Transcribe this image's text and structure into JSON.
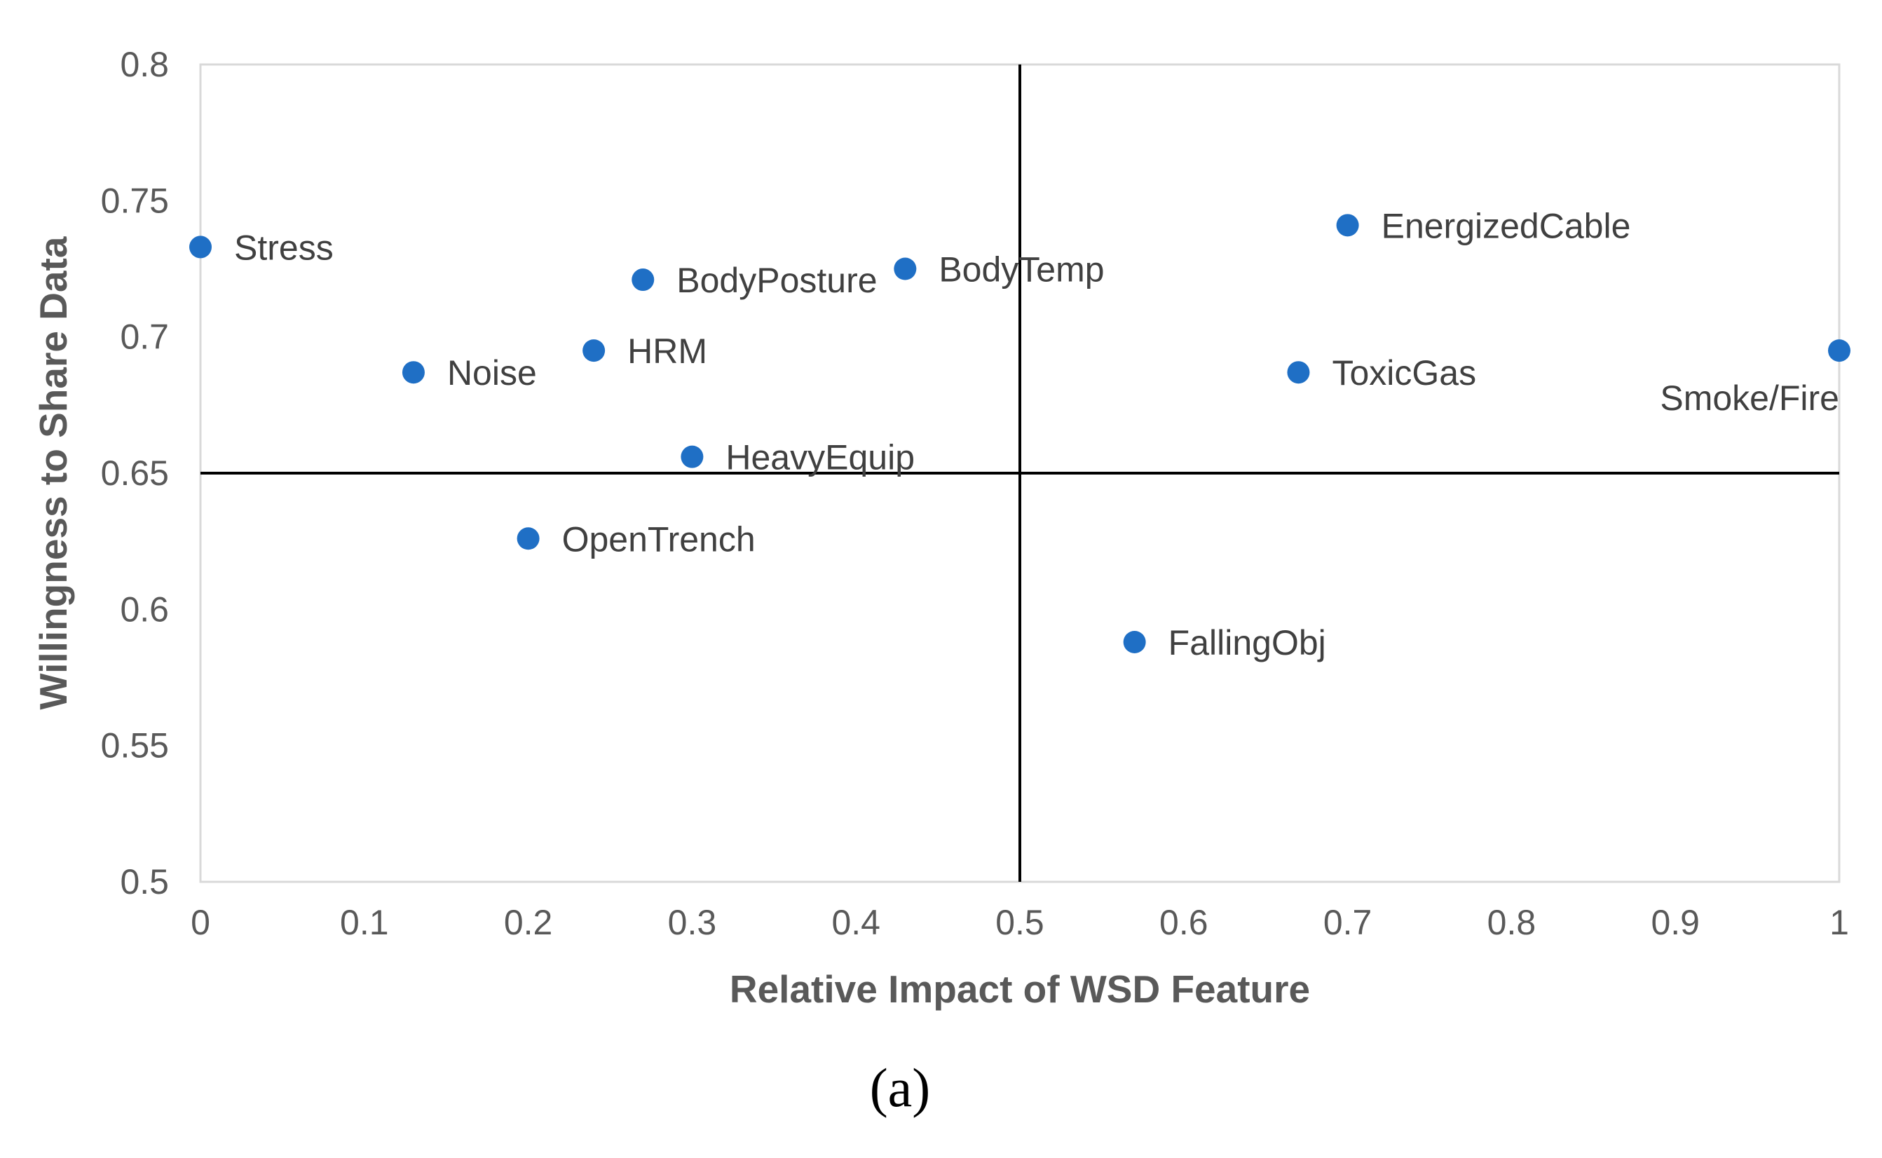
{
  "chart_data": {
    "type": "scatter",
    "xlabel": "Relative Impact of WSD Feature",
    "ylabel": "Willingness to Share Data",
    "xlim": [
      0,
      1
    ],
    "ylim": [
      0.5,
      0.8
    ],
    "x_ticks": [
      {
        "value": 0,
        "label": "0"
      },
      {
        "value": 0.1,
        "label": "0.1"
      },
      {
        "value": 0.2,
        "label": "0.2"
      },
      {
        "value": 0.3,
        "label": "0.3"
      },
      {
        "value": 0.4,
        "label": "0.4"
      },
      {
        "value": 0.5,
        "label": "0.5"
      },
      {
        "value": 0.6,
        "label": "0.6"
      },
      {
        "value": 0.7,
        "label": "0.7"
      },
      {
        "value": 0.8,
        "label": "0.8"
      },
      {
        "value": 0.9,
        "label": "0.9"
      },
      {
        "value": 1,
        "label": "1"
      }
    ],
    "y_ticks": [
      {
        "value": 0.5,
        "label": "0.5"
      },
      {
        "value": 0.55,
        "label": "0.55"
      },
      {
        "value": 0.6,
        "label": "0.6"
      },
      {
        "value": 0.65,
        "label": "0.65"
      },
      {
        "value": 0.7,
        "label": "0.7"
      },
      {
        "value": 0.75,
        "label": "0.75"
      },
      {
        "value": 0.8,
        "label": "0.8"
      }
    ],
    "grid": false,
    "reference_lines": {
      "x": 0.5,
      "y": 0.65
    },
    "marker_color": "#1f6fc5",
    "points": [
      {
        "label": "Stress",
        "x": 0.0,
        "y": 0.733
      },
      {
        "label": "Noise",
        "x": 0.13,
        "y": 0.687
      },
      {
        "label": "OpenTrench",
        "x": 0.2,
        "y": 0.626
      },
      {
        "label": "HRM",
        "x": 0.24,
        "y": 0.695
      },
      {
        "label": "BodyPosture",
        "x": 0.27,
        "y": 0.721
      },
      {
        "label": "HeavyEquip",
        "x": 0.3,
        "y": 0.656
      },
      {
        "label": "BodyTemp",
        "x": 0.43,
        "y": 0.725
      },
      {
        "label": "FallingObj",
        "x": 0.57,
        "y": 0.588
      },
      {
        "label": "ToxicGas",
        "x": 0.67,
        "y": 0.687
      },
      {
        "label": "EnergizedCable",
        "x": 0.7,
        "y": 0.741
      },
      {
        "label": "Smoke/Fire",
        "x": 1.0,
        "y": 0.695
      }
    ]
  },
  "panel_label": "(a)"
}
